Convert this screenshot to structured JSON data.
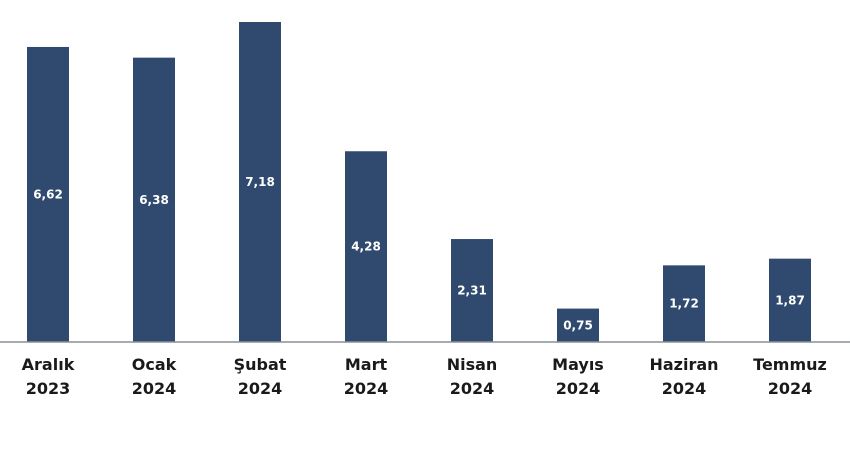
{
  "chart_data": {
    "type": "bar",
    "categories": [
      [
        "Aralık",
        "2023"
      ],
      [
        "Ocak",
        "2024"
      ],
      [
        "Şubat",
        "2024"
      ],
      [
        "Mart",
        "2024"
      ],
      [
        "Nisan",
        "2024"
      ],
      [
        "Mayıs",
        "2024"
      ],
      [
        "Haziran",
        "2024"
      ],
      [
        "Temmuz",
        "2024"
      ]
    ],
    "values": [
      6.62,
      6.38,
      7.18,
      4.28,
      2.31,
      0.75,
      1.72,
      1.87
    ],
    "value_labels": [
      "6,62",
      "6,38",
      "7,18",
      "4,28",
      "2,31",
      "0,75",
      "1,72",
      "1,87"
    ],
    "ylim": [
      0,
      7.18
    ],
    "grid": false,
    "colors": {
      "bar": "#2f4a6e",
      "axis": "#8a9099",
      "value_text": "#ffffff",
      "category_text": "#1a1a1a"
    }
  }
}
